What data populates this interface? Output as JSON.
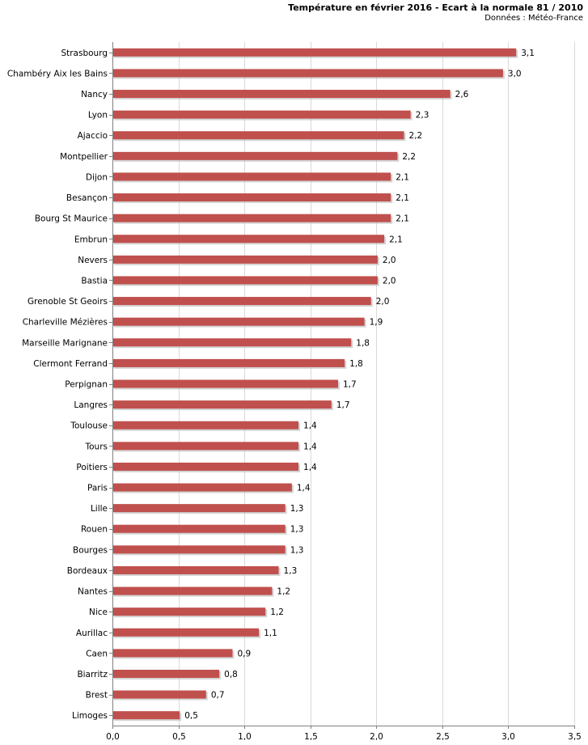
{
  "chart_data": {
    "type": "bar",
    "orientation": "horizontal",
    "title": "Température en février 2016 - Ecart à la normale 81 / 2010",
    "subtitle": "Données : Météo-France",
    "xlabel": "",
    "ylabel": "",
    "xlim": [
      0,
      3.5
    ],
    "xticks": [
      "0,0",
      "0,5",
      "1,0",
      "1,5",
      "2,0",
      "2,5",
      "3,0",
      "3,5"
    ],
    "grid": true,
    "bar_color": "#c0504d",
    "categories": [
      "Strasbourg",
      "Chambéry Aix les Bains",
      "Nancy",
      "Lyon",
      "Ajaccio",
      "Montpellier",
      "Dijon",
      "Besançon",
      "Bourg St Maurice",
      "Embrun",
      "Nevers",
      "Bastia",
      "Grenoble St Geoirs",
      "Charleville Mézières",
      "Marseille Marignane",
      "Clermont Ferrand",
      "Perpignan",
      "Langres",
      "Toulouse",
      "Tours",
      "Poitiers",
      "Paris",
      "Lille",
      "Rouen",
      "Bourges",
      "Bordeaux",
      "Nantes",
      "Nice",
      "Aurillac",
      "Caen",
      "Biarritz",
      "Brest",
      "Limoges"
    ],
    "values": [
      3.06,
      2.96,
      2.56,
      2.26,
      2.21,
      2.16,
      2.11,
      2.11,
      2.11,
      2.06,
      2.01,
      2.01,
      1.96,
      1.91,
      1.81,
      1.76,
      1.71,
      1.66,
      1.41,
      1.41,
      1.41,
      1.36,
      1.31,
      1.31,
      1.31,
      1.26,
      1.21,
      1.16,
      1.11,
      0.91,
      0.81,
      0.71,
      0.51
    ],
    "value_labels": [
      "3,1",
      "3,0",
      "2,6",
      "2,3",
      "2,2",
      "2,2",
      "2,1",
      "2,1",
      "2,1",
      "2,1",
      "2,0",
      "2,0",
      "2,0",
      "1,9",
      "1,8",
      "1,8",
      "1,7",
      "1,7",
      "1,4",
      "1,4",
      "1,4",
      "1,4",
      "1,3",
      "1,3",
      "1,3",
      "1,3",
      "1,2",
      "1,2",
      "1,1",
      "0,9",
      "0,8",
      "0,7",
      "0,5"
    ]
  }
}
